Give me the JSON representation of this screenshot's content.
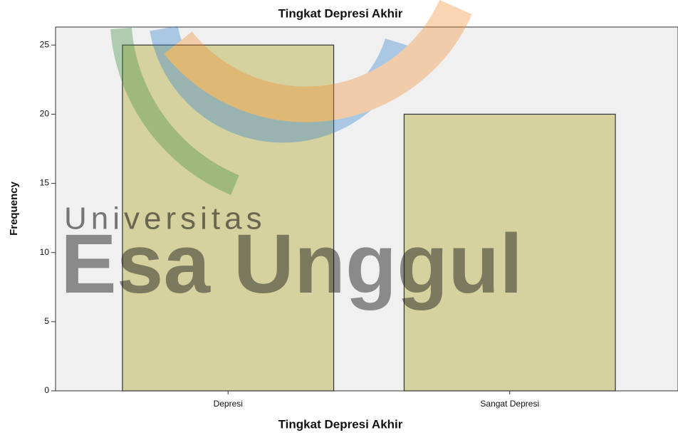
{
  "chart_data": {
    "type": "bar",
    "title": "Tingkat Depresi Akhir",
    "x_label": "Tingkat Depresi Akhir",
    "y_label": "Frequency",
    "categories": [
      "Depresi",
      "Sangat Depresi"
    ],
    "values": [
      25,
      20
    ],
    "color": "#d6d29f",
    "ylim": [
      0,
      26.3
    ],
    "yticks": [
      0,
      5,
      10,
      15,
      20,
      25
    ],
    "grid": false,
    "annotations": [
      "Universitas",
      "Esa Unggul"
    ]
  }
}
